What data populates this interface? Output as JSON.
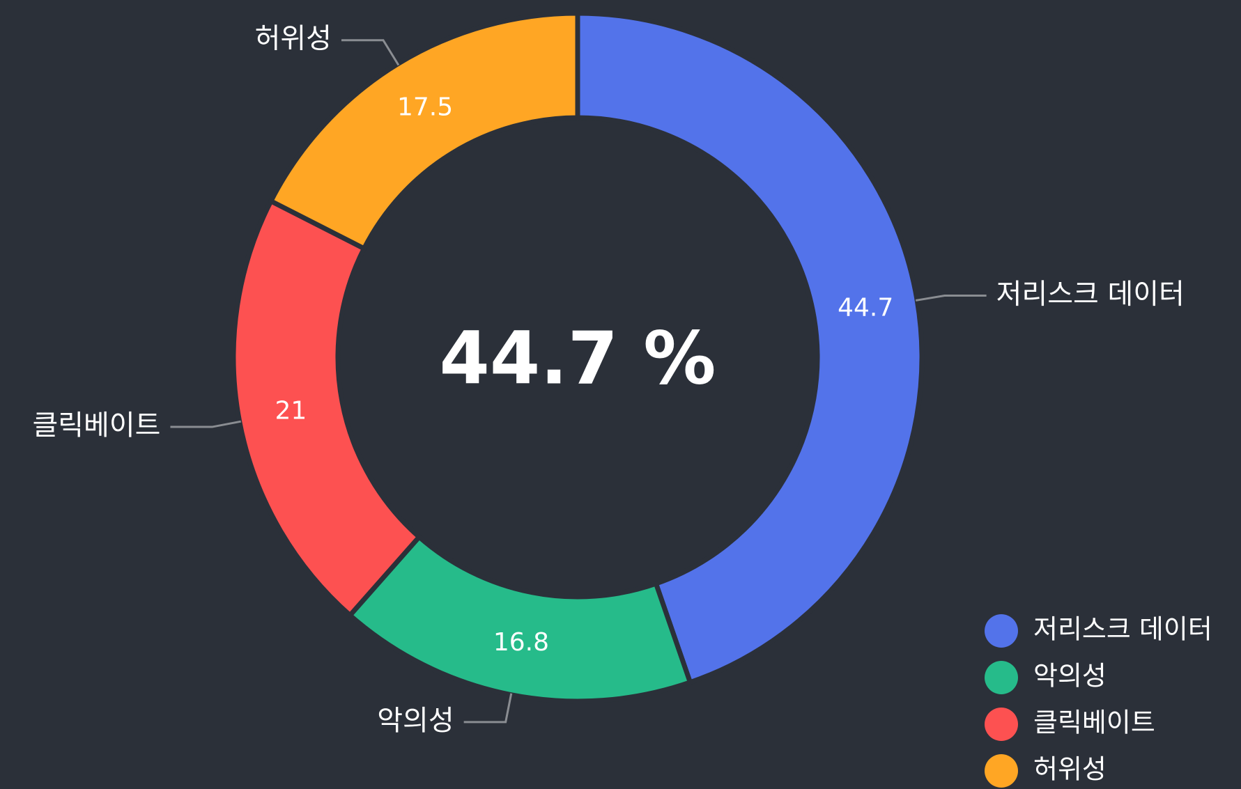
{
  "chart_data": {
    "type": "donut",
    "center_label": "44.7 %",
    "categories": [
      "저리스크 데이터",
      "악의성",
      "클릭베이트",
      "허위성"
    ],
    "values": [
      44.7,
      16.8,
      21,
      17.5
    ],
    "colors": [
      "#5373ea",
      "#26bb8a",
      "#fd5151",
      "#ffa624"
    ],
    "legend": "bottom-right"
  }
}
